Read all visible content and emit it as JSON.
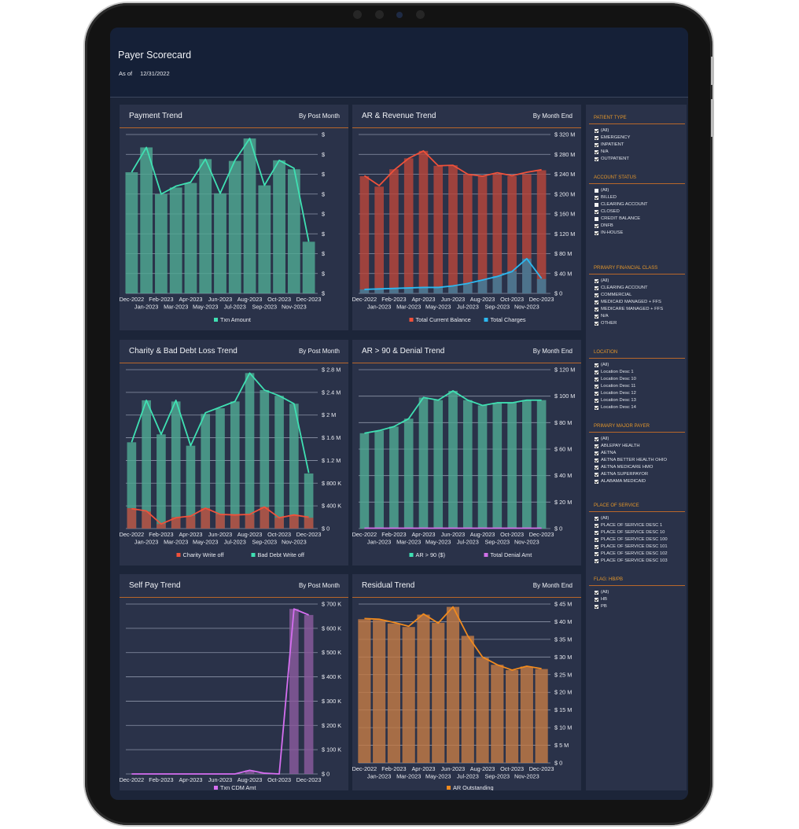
{
  "app": {
    "title": "Payer Scorecard",
    "as_of_label": "As of",
    "as_of_date": "12/31/2022"
  },
  "panels": [
    {
      "title": "Payment Trend",
      "subtitle": "By Post Month"
    },
    {
      "title": "AR & Revenue Trend",
      "subtitle": "By Month End"
    },
    {
      "title": "Charity & Bad Debt Loss Trend",
      "subtitle": "By Post Month"
    },
    {
      "title": "AR > 90 & Denial Trend",
      "subtitle": "By Month End"
    },
    {
      "title": "Self Pay Trend",
      "subtitle": "By Post Month"
    },
    {
      "title": "Residual Trend",
      "subtitle": "By Month End"
    }
  ],
  "filters": [
    {
      "title": "PATIENT TYPE",
      "items": [
        {
          "label": "(All)",
          "checked": true
        },
        {
          "label": "EMERGENCY",
          "checked": true
        },
        {
          "label": "INPATIENT",
          "checked": true
        },
        {
          "label": "N/A",
          "checked": true
        },
        {
          "label": "OUTPATIENT",
          "checked": true
        }
      ]
    },
    {
      "title": "ACCOUNT STATUS",
      "items": [
        {
          "label": "(All)",
          "checked": false
        },
        {
          "label": "BILLED",
          "checked": true
        },
        {
          "label": "CLEARING ACCOUNT",
          "checked": false
        },
        {
          "label": "CLOSED",
          "checked": true
        },
        {
          "label": "CREDIT BALANCE",
          "checked": false
        },
        {
          "label": "DNFB",
          "checked": true
        },
        {
          "label": "IN-HOUSE",
          "checked": true
        }
      ]
    },
    {
      "title": "PRIMARY FINANCIAL CLASS",
      "items": [
        {
          "label": "(All)",
          "checked": true
        },
        {
          "label": "CLEARING ACCOUNT",
          "checked": true
        },
        {
          "label": "COMMERCIAL",
          "checked": true
        },
        {
          "label": "MEDICAID MANAGED + FFS",
          "checked": true
        },
        {
          "label": "MEDICARE MANAGED + FFS",
          "checked": true
        },
        {
          "label": "N/A",
          "checked": true
        },
        {
          "label": "OTHER",
          "checked": true
        }
      ]
    },
    {
      "title": "LOCATION",
      "items": [
        {
          "label": "(All)",
          "checked": true
        },
        {
          "label": "Location Desc 1",
          "checked": true
        },
        {
          "label": "Location Desc 10",
          "checked": true
        },
        {
          "label": "Location Desc 11",
          "checked": true
        },
        {
          "label": "Location Desc 12",
          "checked": true
        },
        {
          "label": "Location Desc 13",
          "checked": true
        },
        {
          "label": "Location Desc 14",
          "checked": true
        }
      ]
    },
    {
      "title": "PRIMARY MAJOR PAYER",
      "items": [
        {
          "label": "(All)",
          "checked": true
        },
        {
          "label": "ABLEPAY HEALTH",
          "checked": true
        },
        {
          "label": "AETNA",
          "checked": true
        },
        {
          "label": "AETNA BETTER HEALTH OHIO",
          "checked": true
        },
        {
          "label": "AETNA MEDICARE HMO",
          "checked": true
        },
        {
          "label": "AETNA SUPERPAYOR",
          "checked": true
        },
        {
          "label": "ALABAMA MEDICAID",
          "checked": true
        }
      ]
    },
    {
      "title": "PLACE OF SERVICE",
      "items": [
        {
          "label": "(All)",
          "checked": true
        },
        {
          "label": "PLACE OF SERVICE DESC 1",
          "checked": true
        },
        {
          "label": "PLACE OF SERVICE DESC 10",
          "checked": true
        },
        {
          "label": "PLACE OF SERVICE DESC 100",
          "checked": true
        },
        {
          "label": "PLACE OF SERVICE DESC 101",
          "checked": true
        },
        {
          "label": "PLACE OF SERVICE DESC 102",
          "checked": true
        },
        {
          "label": "PLACE OF SERVICE DESC 103",
          "checked": true
        }
      ]
    },
    {
      "title": "FLAG: HB/PB",
      "items": [
        {
          "label": "(All)",
          "checked": true
        },
        {
          "label": "HB",
          "checked": true
        },
        {
          "label": "PB",
          "checked": true
        }
      ]
    }
  ],
  "colors": {
    "accent": "#b8672a",
    "filter_heading": "#e3962a",
    "panel_bg": "#2a3249",
    "header_bg": "#152037"
  },
  "chart_data": [
    {
      "type": "bar+line",
      "categories": [
        "Dec-2022",
        "Jan-2023",
        "Feb-2023",
        "Mar-2023",
        "Apr-2023",
        "May-2023",
        "Jun-2023",
        "Jul-2023",
        "Aug-2023",
        "Sep-2023",
        "Oct-2023",
        "Nov-2023",
        "Dec-2023"
      ],
      "ylim": [
        0,
        8
      ],
      "yticks": [
        {
          "v": 0,
          "label": "$"
        },
        {
          "v": 1,
          "label": "$"
        },
        {
          "v": 2,
          "label": "$"
        },
        {
          "v": 3,
          "label": "$"
        },
        {
          "v": 4,
          "label": "$"
        },
        {
          "v": 5,
          "label": "$"
        },
        {
          "v": 6,
          "label": "$"
        },
        {
          "v": 7,
          "label": "$"
        },
        {
          "v": 8,
          "label": "$"
        }
      ],
      "grid": true,
      "legend": "bottom",
      "series": [
        {
          "name": "Txn Amount",
          "bar_color": "#4fa893",
          "line_color": "#3fe0b2",
          "bar_values": [
            6.1,
            7.35,
            5.0,
            5.33,
            5.56,
            6.76,
            5.04,
            6.67,
            7.8,
            5.44,
            6.7,
            6.25,
            2.6
          ],
          "line_values": [
            6.1,
            7.35,
            5.0,
            5.4,
            5.6,
            6.76,
            5.04,
            6.7,
            7.8,
            5.44,
            6.7,
            6.3,
            2.6
          ]
        }
      ]
    },
    {
      "type": "bar+line",
      "categories": [
        "Dec-2022",
        "Jan-2023",
        "Feb-2023",
        "Mar-2023",
        "Apr-2023",
        "May-2023",
        "Jun-2023",
        "Jul-2023",
        "Aug-2023",
        "Sep-2023",
        "Oct-2023",
        "Nov-2023",
        "Dec-2023"
      ],
      "ylim": [
        0,
        320
      ],
      "yticks": [
        {
          "v": 0,
          "label": "$ 0"
        },
        {
          "v": 40,
          "label": "$ 40 M"
        },
        {
          "v": 80,
          "label": "$ 80 M"
        },
        {
          "v": 120,
          "label": "$ 120 M"
        },
        {
          "v": 160,
          "label": "$ 160 M"
        },
        {
          "v": 200,
          "label": "$ 200 M"
        },
        {
          "v": 240,
          "label": "$ 240 M"
        },
        {
          "v": 280,
          "label": "$ 280 M"
        },
        {
          "v": 320,
          "label": "$ 320 M"
        }
      ],
      "grid": true,
      "legend": "bottom",
      "series": [
        {
          "name": "Total Current Balance",
          "bar_color": "#b8453a",
          "line_color": "#f0513a",
          "bar_values": [
            236,
            215,
            250,
            272,
            287,
            257,
            258,
            240,
            236,
            240,
            236,
            240,
            248
          ],
          "line_values": [
            237,
            217,
            248,
            272,
            287,
            257,
            258,
            240,
            236,
            243,
            237,
            244,
            249
          ]
        },
        {
          "name": "Total Charges",
          "bar_color": "#3a7e9e",
          "line_color": "#2cb8f0",
          "bar_values": [
            8,
            9,
            9,
            10,
            11,
            12,
            14,
            19,
            27,
            35,
            45,
            70,
            29
          ],
          "line_values": [
            8,
            9,
            10,
            11,
            12,
            12,
            15,
            20,
            27,
            34,
            44,
            70,
            30
          ]
        }
      ]
    },
    {
      "type": "bar+line",
      "categories": [
        "Dec-2022",
        "Jan-2023",
        "Feb-2023",
        "Mar-2023",
        "Apr-2023",
        "May-2023",
        "Jun-2023",
        "Jul-2023",
        "Aug-2023",
        "Sep-2023",
        "Oct-2023",
        "Nov-2023",
        "Dec-2023"
      ],
      "ylim": [
        0,
        2800
      ],
      "yticks": [
        {
          "v": 0,
          "label": "$ 0"
        },
        {
          "v": 400,
          "label": "$ 400 K"
        },
        {
          "v": 800,
          "label": "$ 800 K"
        },
        {
          "v": 1200,
          "label": "$ 1.2 M"
        },
        {
          "v": 1600,
          "label": "$ 1.6 M"
        },
        {
          "v": 2000,
          "label": "$ 2 M"
        },
        {
          "v": 2400,
          "label": "$ 2.4 M"
        },
        {
          "v": 2800,
          "label": "$ 2.8 M"
        }
      ],
      "grid": true,
      "legend": "bottom",
      "series": [
        {
          "name": "Bad Debt Write off",
          "bar_color": "#4fa893",
          "line_color": "#3fe0b2",
          "bar_values": [
            1520,
            2260,
            1660,
            2240,
            1460,
            2020,
            2120,
            2240,
            2740,
            2440,
            2340,
            2200,
            970
          ],
          "line_values": [
            1520,
            2260,
            1660,
            2260,
            1460,
            2040,
            2140,
            2240,
            2740,
            2440,
            2340,
            2200,
            980
          ]
        },
        {
          "name": "Charity Write off",
          "bar_color": "#b8453a",
          "line_color": "#f0513a",
          "bar_values": [
            360,
            300,
            80,
            200,
            220,
            360,
            250,
            240,
            250,
            380,
            190,
            240,
            190
          ],
          "line_values": [
            350,
            310,
            80,
            190,
            220,
            360,
            250,
            240,
            250,
            380,
            190,
            240,
            200
          ]
        }
      ],
      "legend_order": [
        "Charity Write off",
        "Bad Debt Write off"
      ]
    },
    {
      "type": "bar+line",
      "categories": [
        "Dec-2022",
        "Jan-2023",
        "Feb-2023",
        "Mar-2023",
        "Apr-2023",
        "May-2023",
        "Jun-2023",
        "Jul-2023",
        "Aug-2023",
        "Sep-2023",
        "Oct-2023",
        "Nov-2023",
        "Dec-2023"
      ],
      "ylim": [
        0,
        120
      ],
      "yticks": [
        {
          "v": 0,
          "label": "$ 0"
        },
        {
          "v": 20,
          "label": "$ 20 M"
        },
        {
          "v": 40,
          "label": "$ 40 M"
        },
        {
          "v": 60,
          "label": "$ 60 M"
        },
        {
          "v": 80,
          "label": "$ 80 M"
        },
        {
          "v": 100,
          "label": "$ 100 M"
        },
        {
          "v": 120,
          "label": "$ 120 M"
        }
      ],
      "grid": true,
      "legend": "bottom",
      "series": [
        {
          "name": "AR > 90 ($)",
          "bar_color": "#4fa893",
          "line_color": "#3fe0b2",
          "bar_values": [
            72,
            74,
            77,
            83,
            99,
            97,
            104,
            97,
            93,
            95,
            95,
            97,
            97
          ],
          "line_values": [
            72,
            74,
            77,
            83,
            99,
            97,
            104,
            97,
            93,
            95,
            95,
            97,
            97
          ]
        },
        {
          "name": "Total Denial Amt",
          "bar_color": "#a05ab8",
          "line_color": "#d070e8",
          "line_values": [
            0.3,
            0.3,
            0.3,
            0.3,
            0.3,
            0.3,
            0.3,
            0.3,
            0.3,
            0.3,
            0.3,
            0.3,
            0.3
          ]
        }
      ]
    },
    {
      "type": "bar+line",
      "categories": [
        "Dec-2022",
        "Jan-2023",
        "Feb-2023",
        "Mar-2023",
        "Apr-2023",
        "May-2023",
        "Jun-2023",
        "Jul-2023",
        "Aug-2023",
        "Sep-2023",
        "Oct-2023",
        "Nov-2023",
        "Dec-2023"
      ],
      "ylim": [
        0,
        700
      ],
      "yticks": [
        {
          "v": 0,
          "label": "$ 0"
        },
        {
          "v": 100,
          "label": "$ 100 K"
        },
        {
          "v": 200,
          "label": "$ 200 K"
        },
        {
          "v": 300,
          "label": "$ 300 K"
        },
        {
          "v": 400,
          "label": "$ 400 K"
        },
        {
          "v": 500,
          "label": "$ 500 K"
        },
        {
          "v": 600,
          "label": "$ 600 K"
        },
        {
          "v": 700,
          "label": "$ 700 K"
        }
      ],
      "grid": true,
      "legend": "bottom",
      "series": [
        {
          "name": "Txn CDM Amt",
          "bar_color": "#8a5a9e",
          "line_color": "#d56ef0",
          "bar_values": [
            0,
            0,
            0,
            0,
            0,
            0,
            0,
            0,
            15,
            3,
            0,
            680,
            655
          ],
          "line_values": [
            0,
            0,
            0,
            0,
            0,
            0,
            0,
            0,
            15,
            3,
            0,
            680,
            655
          ]
        }
      ]
    },
    {
      "type": "bar+line",
      "categories": [
        "Dec-2022",
        "Jan-2023",
        "Feb-2023",
        "Mar-2023",
        "Apr-2023",
        "May-2023",
        "Jun-2023",
        "Jul-2023",
        "Aug-2023",
        "Sep-2023",
        "Oct-2023",
        "Nov-2023",
        "Dec-2023"
      ],
      "ylim": [
        0,
        45
      ],
      "yticks": [
        {
          "v": 0,
          "label": "$ 0"
        },
        {
          "v": 5,
          "label": "$ 5 M"
        },
        {
          "v": 10,
          "label": "$ 10 M"
        },
        {
          "v": 15,
          "label": "$ 15 M"
        },
        {
          "v": 20,
          "label": "$ 20 M"
        },
        {
          "v": 25,
          "label": "$ 25 M"
        },
        {
          "v": 30,
          "label": "$ 30 M"
        },
        {
          "v": 35,
          "label": "$ 35 M"
        },
        {
          "v": 40,
          "label": "$ 40 M"
        },
        {
          "v": 45,
          "label": "$ 45 M"
        }
      ],
      "grid": true,
      "legend": "bottom",
      "series": [
        {
          "name": "AR Outstanding",
          "bar_color": "#c27a45",
          "line_color": "#f08a1e",
          "bar_values": [
            40.7,
            40.5,
            39.5,
            38.5,
            42,
            39.7,
            44.2,
            36,
            29.8,
            27.8,
            26.3,
            27.3,
            26.6
          ],
          "line_values": [
            40.9,
            40.7,
            39.8,
            38.7,
            42.2,
            39.6,
            44.2,
            36,
            30,
            27.8,
            26.3,
            27.4,
            26.7
          ]
        }
      ]
    }
  ]
}
